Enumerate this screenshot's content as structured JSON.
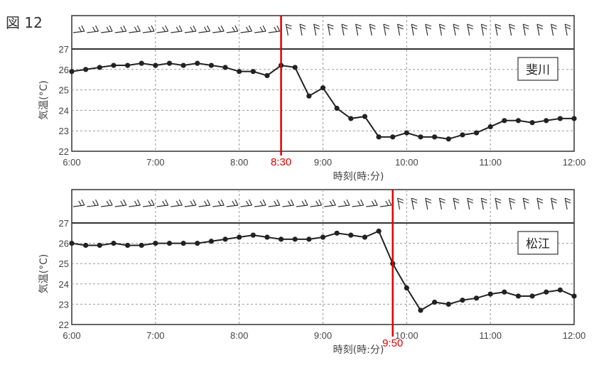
{
  "figure_label": "図 12",
  "colors": {
    "line": "#222222",
    "marker": "#e00000",
    "grid": "#999999"
  },
  "chart_data": [
    {
      "type": "line",
      "station": "斐川",
      "xlabel": "時刻(時:分)",
      "ylabel": "気温(°C)",
      "ylim": [
        22,
        27
      ],
      "xlim": [
        "6:00",
        "12:00"
      ],
      "x_ticks": [
        "6:00",
        "7:00",
        "8:00",
        "9:00",
        "10:00",
        "11:00",
        "12:00"
      ],
      "y_ticks": [
        22,
        23,
        24,
        25,
        26,
        27
      ],
      "grid": true,
      "wind_barbs": true,
      "marker": {
        "time": "8:30",
        "label": "8:30"
      },
      "series": [
        {
          "x": [
            "6:00",
            "6:10",
            "6:20",
            "6:30",
            "6:40",
            "6:50",
            "7:00",
            "7:10",
            "7:20",
            "7:30",
            "7:40",
            "7:50",
            "8:00",
            "8:10",
            "8:20",
            "8:30",
            "8:40",
            "8:50",
            "9:00",
            "9:10",
            "9:20",
            "9:30",
            "9:40",
            "9:50",
            "10:00",
            "10:10",
            "10:20",
            "10:30",
            "10:40",
            "10:50",
            "11:00",
            "11:10",
            "11:20",
            "11:30",
            "11:40",
            "11:50",
            "12:00"
          ],
          "values": [
            25.9,
            26.0,
            26.1,
            26.2,
            26.2,
            26.3,
            26.2,
            26.3,
            26.2,
            26.3,
            26.2,
            26.1,
            25.9,
            25.9,
            25.7,
            26.2,
            26.1,
            24.7,
            25.1,
            24.1,
            23.6,
            23.7,
            22.7,
            22.7,
            22.9,
            22.7,
            22.7,
            22.6,
            22.8,
            22.9,
            23.2,
            23.5,
            23.5,
            23.4,
            23.5,
            23.6,
            23.6
          ]
        }
      ]
    },
    {
      "type": "line",
      "station": "松江",
      "xlabel": "時刻(時:分)",
      "ylabel": "気温(°C)",
      "ylim": [
        22,
        27
      ],
      "xlim": [
        "6:00",
        "12:00"
      ],
      "x_ticks": [
        "6:00",
        "7:00",
        "8:00",
        "9:00",
        "10:00",
        "11:00",
        "12:00"
      ],
      "y_ticks": [
        22,
        23,
        24,
        25,
        26,
        27
      ],
      "grid": true,
      "wind_barbs": true,
      "marker": {
        "time": "9:50",
        "label": "9:50"
      },
      "series": [
        {
          "x": [
            "6:00",
            "6:10",
            "6:20",
            "6:30",
            "6:40",
            "6:50",
            "7:00",
            "7:10",
            "7:20",
            "7:30",
            "7:40",
            "7:50",
            "8:00",
            "8:10",
            "8:20",
            "8:30",
            "8:40",
            "8:50",
            "9:00",
            "9:10",
            "9:20",
            "9:30",
            "9:40",
            "9:50",
            "10:00",
            "10:10",
            "10:20",
            "10:30",
            "10:40",
            "10:50",
            "11:00",
            "11:10",
            "11:20",
            "11:30",
            "11:40",
            "11:50",
            "12:00"
          ],
          "values": [
            26.0,
            25.9,
            25.9,
            26.0,
            25.9,
            25.9,
            26.0,
            26.0,
            26.0,
            26.0,
            26.1,
            26.2,
            26.3,
            26.4,
            26.3,
            26.2,
            26.2,
            26.2,
            26.3,
            26.5,
            26.4,
            26.3,
            26.6,
            25.0,
            23.8,
            22.7,
            23.1,
            23.0,
            23.2,
            23.3,
            23.5,
            23.6,
            23.4,
            23.4,
            23.6,
            23.7,
            23.4
          ]
        }
      ]
    }
  ]
}
